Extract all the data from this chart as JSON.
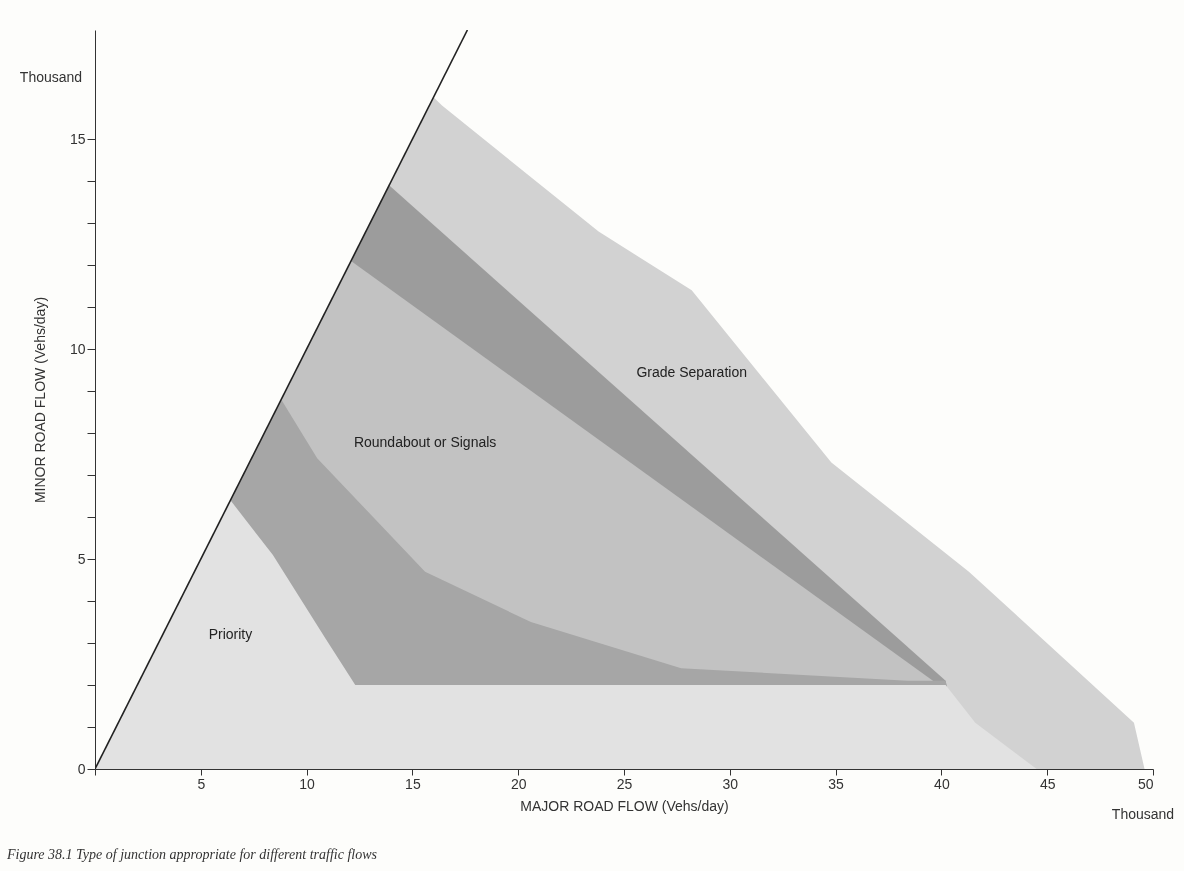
{
  "chart_data": {
    "type": "area",
    "xlabel": "MAJOR ROAD FLOW  (Vehs/day)",
    "ylabel": "MINOR ROAD FLOW  (Vehs/day)",
    "annotations": [
      "Thousand",
      "Thousand",
      "Figure 38.1 Type of junction appropriate for different traffic flows"
    ],
    "series": [
      {
        "name": "Grade Separation",
        "color": "#d2d2d2",
        "x": [
          0,
          16.0,
          16.4,
          23.8,
          28.2,
          34.8,
          41.3,
          49.1,
          49.6
        ],
        "values": [
          0,
          16.0,
          15.8,
          12.8,
          11.4,
          7.3,
          4.7,
          1.1,
          0
        ]
      },
      {
        "color": "#9c9c9c",
        "x": [
          0,
          13.9,
          40.2,
          41.0
        ],
        "values": [
          0,
          13.9,
          2.1,
          0
        ]
      },
      {
        "name": "Roundabout or Signals",
        "color": "#c2c2c2",
        "x": [
          0,
          12.1,
          39.6,
          40.4
        ],
        "values": [
          0,
          12.1,
          2.1,
          0
        ]
      },
      {
        "color": "#a6a6a6",
        "x": [
          0,
          8.8,
          10.5,
          15.6,
          20.6,
          27.7,
          38.4,
          40.2,
          41.0
        ],
        "values": [
          0,
          8.8,
          7.4,
          4.7,
          3.5,
          2.4,
          2.1,
          2.1,
          0
        ]
      },
      {
        "name": "Priority",
        "color": "#e2e2e2",
        "x": [
          0,
          6.4,
          8.4,
          10.9,
          12.3,
          40.2,
          41.6,
          44.5
        ],
        "values": [
          0,
          6.4,
          5.1,
          3.1,
          2.0,
          2.0,
          1.1,
          0
        ]
      },
      {
        "type": "line",
        "color": "#222222",
        "x": [
          0,
          17.6
        ],
        "values": [
          0,
          17.6
        ]
      }
    ],
    "xlim": [
      0,
      50
    ],
    "ylim": [
      0,
      17.6
    ],
    "xticks": [
      {
        "value": 0,
        "label": null
      },
      5,
      10,
      15,
      20,
      25,
      30,
      35,
      40,
      45,
      50
    ],
    "yticks": [
      0,
      {
        "value": 1,
        "label": null
      },
      {
        "value": 2,
        "label": null
      },
      {
        "value": 3,
        "label": null
      },
      {
        "value": 4,
        "label": null
      },
      5,
      {
        "value": 6,
        "label": null
      },
      {
        "value": 7,
        "label": null
      },
      {
        "value": 8,
        "label": null
      },
      {
        "value": 9,
        "label": null
      },
      10,
      {
        "value": 11,
        "label": null
      },
      {
        "value": 12,
        "label": null
      },
      {
        "value": 13,
        "label": null
      },
      {
        "value": 14,
        "label": null
      },
      15
    ],
    "grid": false
  }
}
